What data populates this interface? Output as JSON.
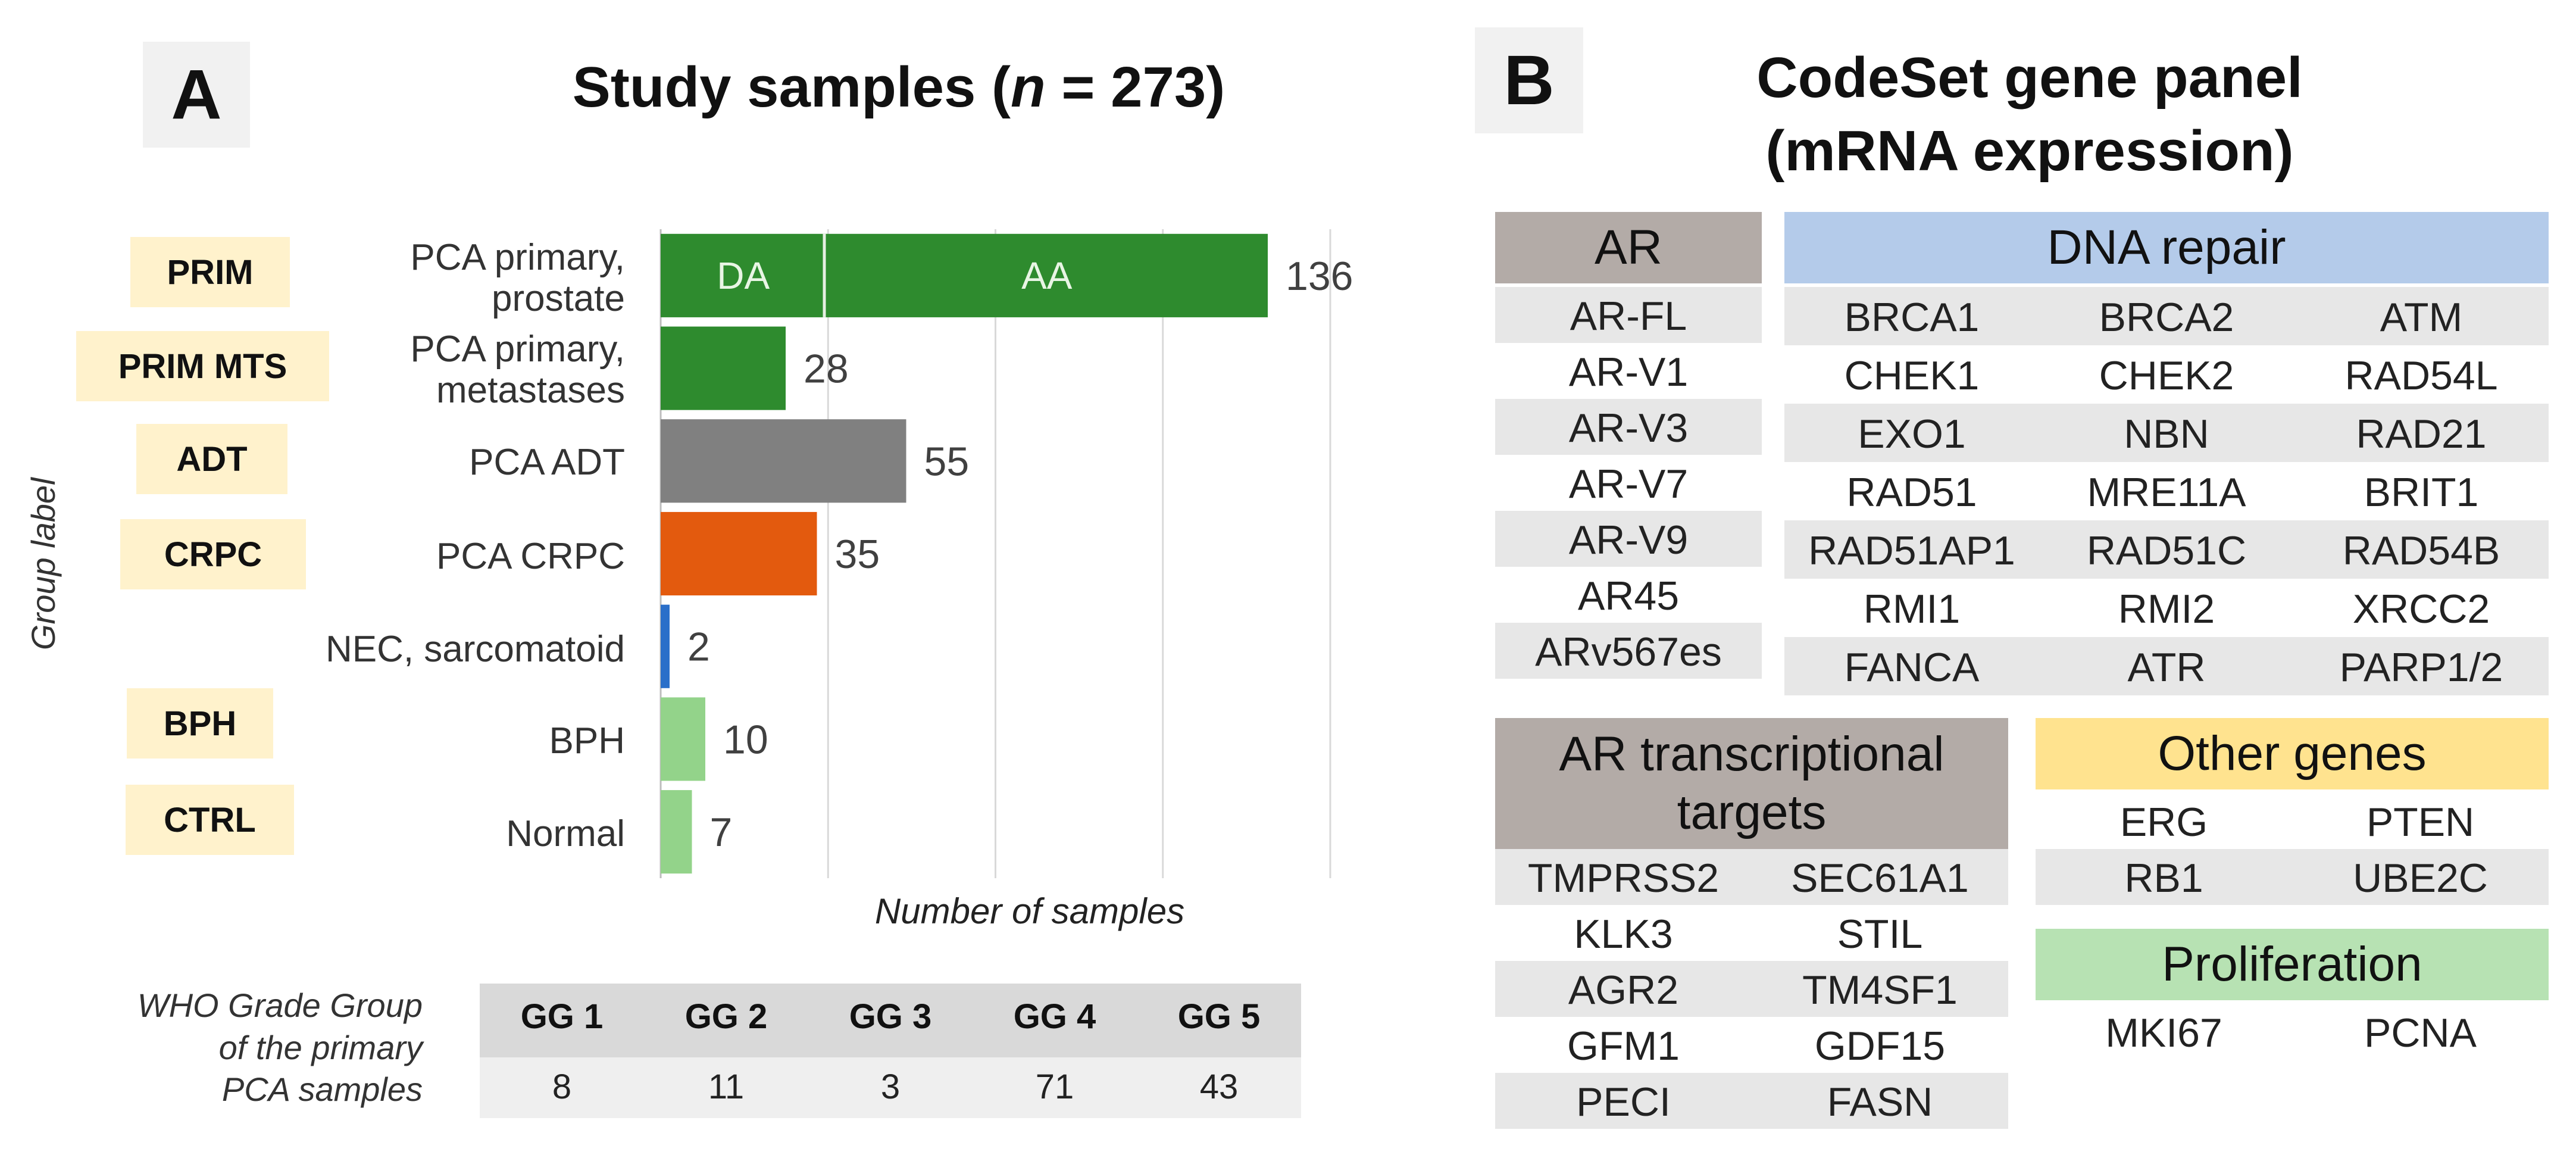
{
  "panel_a": {
    "letter": "A",
    "title_prefix": "Study samples (",
    "title_n": "n",
    "title_suffix": " = 273)",
    "group_axis_label": "Group label",
    "groups": [
      {
        "tag": "PRIM",
        "category": "PCA primary, prostate"
      },
      {
        "tag": "PRIM MTS",
        "category": "PCA primary, metastases"
      },
      {
        "tag": "ADT",
        "category": "PCA ADT"
      },
      {
        "tag": "CRPC",
        "category": "PCA CRPC"
      },
      {
        "tag": "",
        "category": "NEC, sarcomatoid"
      },
      {
        "tag": "BPH",
        "category": "BPH"
      },
      {
        "tag": "CTRL",
        "category": "Normal"
      }
    ],
    "who_table": {
      "label": "WHO Grade Group of the primary PCA samples",
      "label_lines": [
        "WHO Grade Group",
        "of the primary",
        "PCA samples"
      ],
      "headers": [
        "GG 1",
        "GG 2",
        "GG 3",
        "GG 4",
        "GG 5"
      ],
      "values": [
        "8",
        "11",
        "3",
        "71",
        "43"
      ]
    }
  },
  "chart_data": {
    "type": "bar",
    "orientation": "horizontal",
    "title": "Study samples (n = 273)",
    "xlabel": "Number of samples",
    "ylabel": "Group label",
    "xlim": [
      0,
      150
    ],
    "grid": true,
    "categories": [
      "PCA primary, prostate",
      "PCA primary, metastases",
      "PCA ADT",
      "PCA CRPC",
      "NEC, sarcomatoid",
      "BPH",
      "Normal"
    ],
    "values": [
      136,
      28,
      55,
      35,
      2,
      10,
      7
    ],
    "colors": [
      "#2e8b2e",
      "#2e8b2e",
      "#808080",
      "#e35a0e",
      "#2a6fc9",
      "#93d38a",
      "#93d38a"
    ],
    "stacked_segments": {
      "category": "PCA primary, prostate",
      "segments": [
        {
          "name": "DA",
          "value": 37
        },
        {
          "name": "AA",
          "value": 99
        }
      ]
    },
    "data_labels": [
      "136",
      "28",
      "55",
      "35",
      "2",
      "10",
      "7"
    ]
  },
  "panel_b": {
    "letter": "B",
    "title_line1": "CodeSet gene panel",
    "title_line2": "(mRNA expression)",
    "ar": {
      "header": "AR",
      "color": "#b3aba7",
      "genes": [
        "AR-FL",
        "AR-V1",
        "AR-V3",
        "AR-V7",
        "AR-V9",
        "AR45",
        "ARv567es"
      ]
    },
    "dna_repair": {
      "header": "DNA repair",
      "color": "#b4cbea",
      "rows": [
        [
          "BRCA1",
          "BRCA2",
          "ATM"
        ],
        [
          "CHEK1",
          "CHEK2",
          "RAD54L"
        ],
        [
          "EXO1",
          "NBN",
          "RAD21"
        ],
        [
          "RAD51",
          "MRE11A",
          "BRIT1"
        ],
        [
          "RAD51AP1",
          "RAD51C",
          "RAD54B"
        ],
        [
          "RMI1",
          "RMI2",
          "XRCC2"
        ],
        [
          "FANCA",
          "ATR",
          "PARP1/2"
        ]
      ]
    },
    "ar_targets": {
      "header_line1": "AR transcriptional",
      "header_line2": "targets",
      "color": "#b3aba7",
      "rows": [
        [
          "TMPRSS2",
          "SEC61A1"
        ],
        [
          "KLK3",
          "STIL"
        ],
        [
          "AGR2",
          "TM4SF1"
        ],
        [
          "GFM1",
          "GDF15"
        ],
        [
          "PECI",
          "FASN"
        ]
      ]
    },
    "other_genes": {
      "header": "Other genes",
      "color": "#ffe38f",
      "rows": [
        [
          "ERG",
          "PTEN"
        ],
        [
          "RB1",
          "UBE2C"
        ]
      ]
    },
    "proliferation": {
      "header": "Proliferation",
      "color": "#b7e2b3",
      "rows": [
        [
          "MKI67",
          "PCNA"
        ]
      ]
    }
  }
}
